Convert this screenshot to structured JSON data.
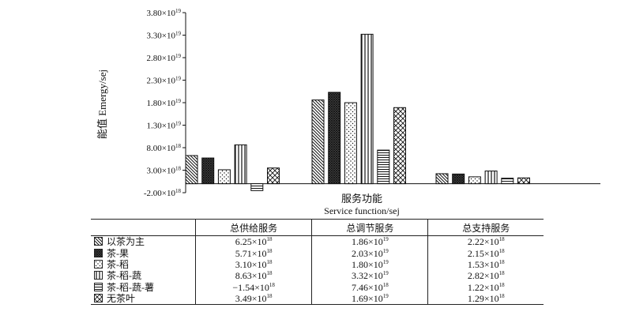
{
  "chart_data": {
    "type": "bar",
    "ylabel": "能值 Emergy/sej",
    "xlabel": "服务功能",
    "xlabel_en": "Service function/sej",
    "ylim": [
      -2e+18,
      3.8e+19
    ],
    "yticks": [
      -2e+18,
      3e+18,
      8e+18,
      1.3e+19,
      1.8e+19,
      2.3e+19,
      2.8e+19,
      3.3e+19,
      3.8e+19
    ],
    "ytick_labels": [
      {
        "m": "-2.00",
        "e": "18"
      },
      {
        "m": "3.00",
        "e": "18"
      },
      {
        "m": "8.00",
        "e": "18"
      },
      {
        "m": "1.30",
        "e": "19"
      },
      {
        "m": "1.80",
        "e": "19"
      },
      {
        "m": "2.30",
        "e": "19"
      },
      {
        "m": "2.80",
        "e": "19"
      },
      {
        "m": "3.30",
        "e": "19"
      },
      {
        "m": "3.80",
        "e": "19"
      }
    ],
    "categories": [
      "总供给服务",
      "总调节服务",
      "总支持服务"
    ],
    "series": [
      {
        "name": "以茶为主",
        "pattern": "hatch-back",
        "values": [
          6.25e+18,
          1.86e+19,
          2.22e+18
        ],
        "labels": [
          {
            "m": "6.25",
            "e": "18"
          },
          {
            "m": "1.86",
            "e": "19"
          },
          {
            "m": "2.22",
            "e": "18"
          }
        ]
      },
      {
        "name": "茶-果",
        "pattern": "crosshatch-dark",
        "values": [
          5.71e+18,
          2.03e+19,
          2.15e+18
        ],
        "labels": [
          {
            "m": "5.71",
            "e": "18"
          },
          {
            "m": "2.03",
            "e": "19"
          },
          {
            "m": "2.15",
            "e": "18"
          }
        ]
      },
      {
        "name": "茶-稻",
        "pattern": "dots",
        "values": [
          3.1e+18,
          1.8e+19,
          1.53e+18
        ],
        "labels": [
          {
            "m": "3.10",
            "e": "18"
          },
          {
            "m": "1.80",
            "e": "19"
          },
          {
            "m": "1.53",
            "e": "18"
          }
        ]
      },
      {
        "name": "茶-稻-蔬",
        "pattern": "vertical",
        "values": [
          8.63e+18,
          3.32e+19,
          2.82e+18
        ],
        "labels": [
          {
            "m": "8.63",
            "e": "18"
          },
          {
            "m": "3.32",
            "e": "19"
          },
          {
            "m": "2.82",
            "e": "18"
          }
        ]
      },
      {
        "name": "茶-稻-蔬-薯",
        "pattern": "horizontal",
        "values": [
          -1.54e+18,
          7.46e+18,
          1.22e+18
        ],
        "labels": [
          {
            "m": "−1.54",
            "e": "18"
          },
          {
            "m": "7.46",
            "e": "18"
          },
          {
            "m": "1.22",
            "e": "18"
          }
        ]
      },
      {
        "name": "无茶叶",
        "pattern": "crosshatch",
        "values": [
          3.49e+18,
          1.69e+19,
          1.29e+18
        ],
        "labels": [
          {
            "m": "3.49",
            "e": "18"
          },
          {
            "m": "1.69",
            "e": "19"
          },
          {
            "m": "1.29",
            "e": "18"
          }
        ]
      }
    ],
    "grid": false,
    "times_sign": "×",
    "mult_base": "10"
  }
}
